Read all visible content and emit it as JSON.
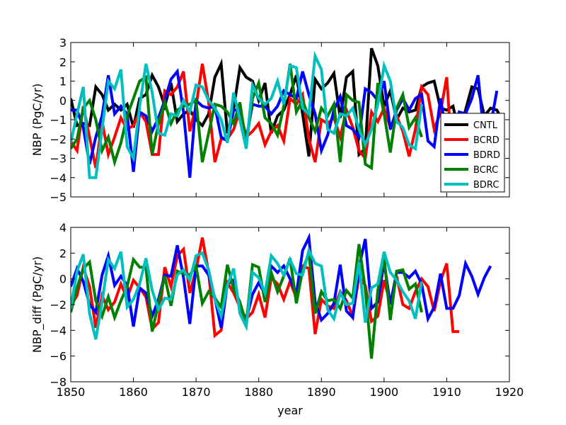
{
  "colors": {
    "CNTL": "#000000",
    "BCRD": "#ff0000",
    "BDRD": "#0000ff",
    "BCRC": "#008000",
    "BDRC": "#00bfbf"
  },
  "chart_data": [
    {
      "type": "line",
      "title": "",
      "xlabel": "",
      "ylabel": "NBP (PgC/yr)",
      "xlim": [
        1850,
        1920
      ],
      "ylim": [
        -5,
        3
      ],
      "grid": false,
      "legend": {
        "position": "right",
        "entries": [
          "CNTL",
          "BCRD",
          "BDRD",
          "BCRC",
          "BDRC"
        ]
      },
      "y_ticks": [
        "-5",
        "-4",
        "-3",
        "-2",
        "-1",
        "0",
        "1",
        "2",
        "3"
      ],
      "series": [
        {
          "name": "CNTL",
          "color": "#000000",
          "x_start": 1850,
          "values": [
            0.1,
            -1.3,
            -1.2,
            -1.3,
            0.7,
            0.3,
            -0.5,
            -0.2,
            -0.5,
            -0.2,
            -1.4,
            0.1,
            0.3,
            1.3,
            0.7,
            -0.3,
            0.9,
            -1.1,
            -0.7,
            -0.5,
            -1.0,
            -1.3,
            -0.7,
            1.2,
            1.9,
            -1.7,
            -0.4,
            1.7,
            1.2,
            1.0,
            0.0,
            0.9,
            -1.7,
            -0.8,
            -0.5,
            0.3,
            1.3,
            -0.7,
            -2.9,
            1.1,
            0.6,
            0.9,
            1.4,
            -0.9,
            1.2,
            1.5,
            -2.8,
            -2.5,
            2.7,
            1.8,
            -0.3,
            0.5,
            -1.0,
            -0.4,
            -0.6,
            -0.5,
            0.7,
            0.9,
            1.0,
            -0.4,
            -0.5,
            -0.3,
            -1.7,
            -0.5,
            0.7,
            0.6,
            -0.8,
            -0.4,
            -0.5,
            -1.1
          ]
        },
        {
          "name": "BCRD",
          "color": "#ff0000",
          "x_start": 1850,
          "values": [
            -2.1,
            -2.6,
            -0.3,
            -1.9,
            -3.5,
            -1.1,
            -2.8,
            -1.9,
            -0.9,
            -1.5,
            -1.3,
            -0.6,
            -1.1,
            -2.8,
            -2.8,
            0.5,
            0.3,
            0.7,
            1.5,
            -1.6,
            -0.3,
            1.9,
            -0.1,
            -3.2,
            -2.0,
            -2.0,
            -1.5,
            -0.5,
            -1.9,
            -1.6,
            -1.2,
            -2.3,
            -1.6,
            -1.3,
            -2.1,
            0.1,
            -0.2,
            0.3,
            -2.0,
            -3.2,
            -1.0,
            -1.2,
            -0.9,
            -1.9,
            -0.5,
            -1.4,
            -2.6,
            -3.0,
            -0.6,
            -1.1,
            -0.4,
            -1.4,
            -0.8,
            -1.6,
            -2.9,
            -1.5,
            0.7,
            0.3,
            -1.5,
            -0.6,
            1.2,
            -3.6,
            -3.8
          ]
        },
        {
          "name": "BDRD",
          "color": "#0000ff",
          "x_start": 1850,
          "values": [
            -0.5,
            -0.5,
            -1.4,
            -3.3,
            -1.9,
            -0.8,
            1.3,
            -0.7,
            -0.3,
            -0.7,
            -3.7,
            -0.6,
            -0.8,
            -1.6,
            -0.9,
            0.0,
            1.1,
            1.5,
            -0.6,
            -4.0,
            0.0,
            -0.3,
            -0.4,
            -0.3,
            -1.9,
            -2.1,
            -0.5,
            -0.5,
            -2.0,
            -0.2,
            -0.3,
            -0.3,
            -0.7,
            -0.3,
            0.5,
            0.3,
            0.1,
            1.5,
            0.3,
            -0.7,
            -2.6,
            -1.8,
            -0.5,
            0.2,
            -1.3,
            -1.5,
            -1.9,
            0.6,
            0.4,
            0.0,
            1.0,
            -1.5,
            -0.5,
            0.1,
            -0.5,
            0.1,
            0.3,
            -2.1,
            -2.4,
            0.1,
            -1.8,
            -1.6,
            -0.6,
            -0.7,
            0.1,
            1.3,
            -2.0,
            -1.3,
            0.5
          ]
        },
        {
          "name": "BCRC",
          "color": "#008000",
          "x_start": 1850,
          "values": [
            -2.5,
            -2.0,
            -0.4,
            0.0,
            -1.0,
            -2.6,
            -1.9,
            -3.2,
            -2.2,
            -0.8,
            0.1,
            1.0,
            1.2,
            -2.8,
            -1.2,
            -0.1,
            -1.2,
            -0.5,
            -0.3,
            -0.2,
            0.0,
            -3.2,
            -1.7,
            -0.2,
            -0.3,
            -0.6,
            -1.2,
            -0.1,
            -2.3,
            0.1,
            0.9,
            -0.9,
            -1.2,
            -1.8,
            -0.3,
            1.9,
            -0.6,
            0.0,
            -0.9,
            -1.6,
            -0.4,
            -0.8,
            -0.2,
            -3.2,
            0.3,
            0.0,
            -0.1,
            -3.3,
            -3.5,
            0.9,
            -0.7,
            -2.7,
            -0.4,
            0.3,
            -1.4,
            -0.9,
            -1.9
          ]
        },
        {
          "name": "BDRC",
          "color": "#00bfbf",
          "x_start": 1850,
          "values": [
            -2.2,
            -0.7,
            0.7,
            -4.0,
            -4.0,
            -1.5,
            1.0,
            0.6,
            1.6,
            -2.4,
            -3.0,
            -0.3,
            1.9,
            0.4,
            -1.7,
            -1.8,
            -0.7,
            -0.8,
            0.0,
            -0.6,
            0.8,
            0.7,
            0.0,
            -0.4,
            -1.0,
            -2.2,
            0.4,
            -1.0,
            -2.5,
            0.8,
            0.1,
            -0.2,
            0.1,
            1.0,
            -0.2,
            1.8,
            1.7,
            -0.4,
            -0.7,
            2.3,
            1.6,
            -1.5,
            -1.7,
            -0.7,
            -0.8,
            -0.4,
            -1.5,
            -2.3,
            -1.5,
            -0.2,
            1.8,
            1.0,
            -1.1,
            -1.4,
            -2.3,
            -2.5,
            -0.2
          ]
        }
      ]
    },
    {
      "type": "line",
      "title": "",
      "xlabel": "year",
      "ylabel": "NBP_diff (PgC/yr)",
      "xlim": [
        1850,
        1920
      ],
      "ylim": [
        -8,
        4
      ],
      "grid": false,
      "x_ticks": [
        "1850",
        "1860",
        "1870",
        "1880",
        "1890",
        "1900",
        "1910",
        "1920"
      ],
      "y_ticks": [
        "-8",
        "-6",
        "-4",
        "-2",
        "0",
        "2",
        "4"
      ],
      "series": [
        {
          "name": "BCRD",
          "color": "#ff0000",
          "x_start": 1850,
          "values": [
            -2.1,
            -1.3,
            0.9,
            -0.6,
            -3.8,
            -1.3,
            -2.4,
            -1.8,
            -0.4,
            -1.5,
            -0.1,
            -0.7,
            -1.4,
            -3.9,
            -3.4,
            0.9,
            -0.6,
            1.8,
            2.3,
            -1.1,
            0.7,
            3.2,
            0.5,
            -4.4,
            -4.0,
            -0.3,
            -1.1,
            -2.2,
            -3.1,
            -2.6,
            -1.2,
            -3.0,
            0.1,
            -0.4,
            -1.6,
            -0.2,
            -1.5,
            1.0,
            0.8,
            -4.3,
            -1.6,
            -2.1,
            -2.3,
            -1.0,
            -1.7,
            -2.9,
            0.2,
            -0.5,
            -3.3,
            -2.9,
            -0.1,
            -1.9,
            0.2,
            -2.0,
            -2.3,
            -1.0,
            0.0,
            -0.6,
            -2.5,
            -0.2,
            1.2,
            -4.1,
            -4.1
          ]
        },
        {
          "name": "BDRD",
          "color": "#0000ff",
          "x_start": 1850,
          "values": [
            -0.6,
            0.8,
            -0.2,
            -2.0,
            -2.6,
            0.3,
            1.8,
            -0.5,
            0.2,
            -0.5,
            -3.7,
            -0.7,
            -1.1,
            -2.9,
            -1.6,
            0.3,
            0.2,
            2.6,
            0.1,
            -3.5,
            1.0,
            1.0,
            0.3,
            -1.5,
            -3.8,
            -0.4,
            -0.1,
            -2.2,
            -3.2,
            -1.2,
            -0.3,
            -1.2,
            1.0,
            0.5,
            1.0,
            0.0,
            -1.2,
            2.2,
            3.2,
            -1.8,
            -3.2,
            -2.7,
            -1.9,
            1.1,
            -2.5,
            -3.0,
            0.9,
            3.1,
            -2.3,
            -1.8,
            1.3,
            -2.0,
            0.5,
            0.5,
            0.1,
            0.6,
            -0.4,
            -3.1,
            -2.2,
            0.4,
            -2.3,
            -2.3,
            -1.3,
            1.2,
            0.2,
            -1.2,
            0.1,
            1.0
          ]
        },
        {
          "name": "BCRC",
          "color": "#008000",
          "x_start": 1850,
          "values": [
            -2.6,
            -0.7,
            0.8,
            1.3,
            -1.7,
            -2.9,
            -1.4,
            -3.0,
            -1.7,
            -0.6,
            1.5,
            0.9,
            0.9,
            -4.1,
            -1.9,
            0.2,
            -2.1,
            0.6,
            0.4,
            0.3,
            1.0,
            -1.9,
            -1.0,
            -1.5,
            -2.2,
            1.1,
            -0.8,
            -1.8,
            -3.5,
            1.1,
            0.9,
            -1.8,
            0.5,
            -1.0,
            0.2,
            1.6,
            -1.9,
            0.7,
            2.0,
            -2.7,
            -1.0,
            -1.7,
            -1.6,
            -2.3,
            -0.9,
            -1.5,
            2.7,
            -0.8,
            -6.2,
            -0.9,
            1.7,
            -3.2,
            0.6,
            0.7,
            -0.8,
            -0.4,
            -2.6
          ]
        },
        {
          "name": "BDRC",
          "color": "#00bfbf",
          "x_start": 1850,
          "values": [
            -2.3,
            0.6,
            1.9,
            -2.7,
            -4.7,
            -1.8,
            1.5,
            0.8,
            2.1,
            -2.2,
            -1.6,
            -0.4,
            1.6,
            -0.9,
            -2.4,
            -1.5,
            -1.6,
            0.3,
            0.7,
            -0.1,
            1.8,
            2.0,
            0.7,
            -1.6,
            -2.9,
            -0.5,
            0.8,
            -2.7,
            -3.7,
            0.5,
            0.1,
            -1.1,
            1.8,
            1.2,
            0.3,
            1.5,
            0.4,
            0.3,
            2.2,
            1.2,
            1.0,
            -2.4,
            -3.1,
            -1.1,
            -2.0,
            -1.9,
            1.3,
            -3.4,
            -0.7,
            -0.4,
            2.1,
            0.5,
            -0.1,
            -1.0,
            -1.7,
            -3.1,
            -0.2
          ]
        }
      ]
    }
  ]
}
